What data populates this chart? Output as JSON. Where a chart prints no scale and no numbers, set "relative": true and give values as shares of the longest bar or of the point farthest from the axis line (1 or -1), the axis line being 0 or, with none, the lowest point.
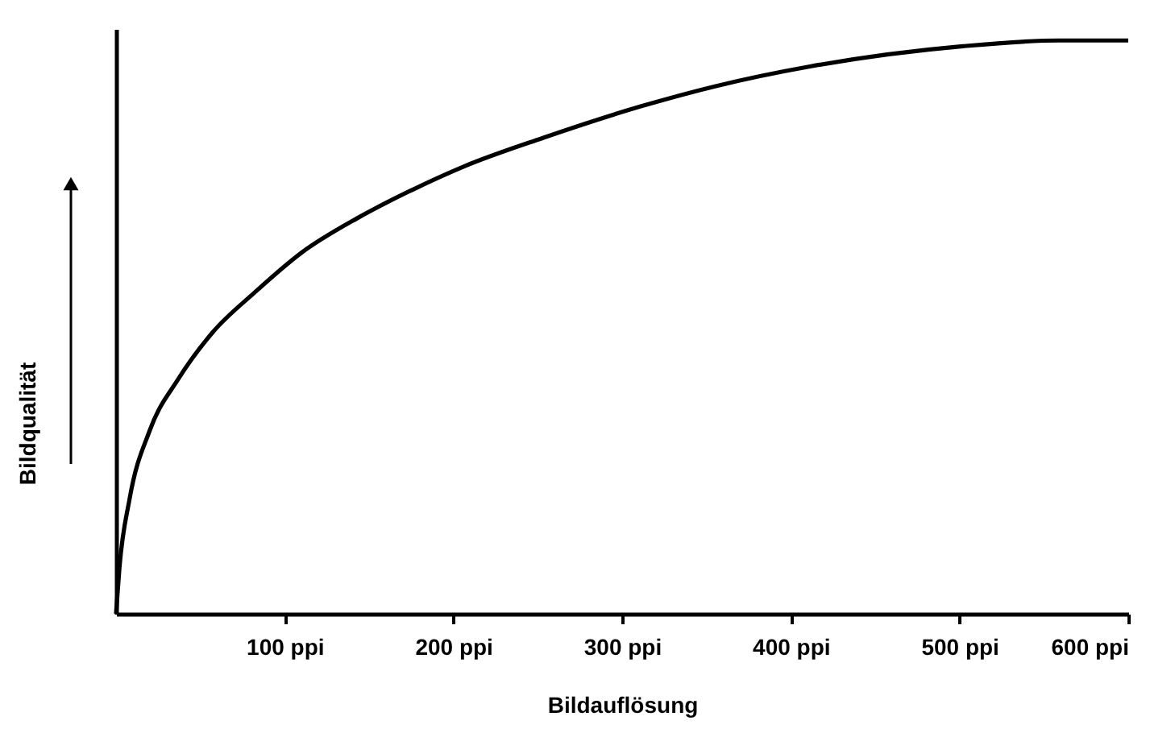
{
  "chart_data": {
    "type": "line",
    "relative": true,
    "xlabel": "Bildauflösung",
    "ylabel": "Bildqualität",
    "x": [
      0,
      2,
      8,
      20,
      37,
      57,
      82,
      110,
      143,
      176,
      206,
      253,
      311,
      355,
      412,
      502,
      559,
      600
    ],
    "series": [
      {
        "color": "#000000",
        "values": [
          0,
          0.08,
          0.2,
          0.32,
          0.41,
          0.49,
          0.56,
          0.63,
          0.69,
          0.74,
          0.78,
          0.83,
          0.885,
          0.92,
          0.955,
          0.99,
          1.0,
          1.0
        ]
      }
    ],
    "xlim": [
      0,
      600
    ],
    "xticks": [
      {
        "value": 100,
        "label": "100 ppi"
      },
      {
        "value": 200,
        "label": "200 ppi"
      },
      {
        "value": 300,
        "label": "300 ppi"
      },
      {
        "value": 400,
        "label": "400 ppi"
      },
      {
        "value": 500,
        "label": "500 ppi"
      },
      {
        "value": 600,
        "label": "600 ppi"
      }
    ],
    "tick_labels": "x",
    "grid": false,
    "marker": "none",
    "line_style": "solid"
  }
}
